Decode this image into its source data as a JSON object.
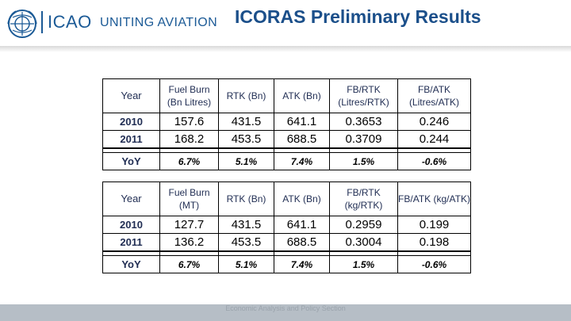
{
  "header": {
    "logo_text": "ICAO",
    "tagline": "UNITING AVIATION",
    "title": "ICORAS Preliminary Results"
  },
  "footer": {
    "text": "Economic Analysis and Policy Section"
  },
  "tables": [
    {
      "headers": [
        "Year",
        "Fuel Burn (Bn Litres)",
        "RTK (Bn)",
        "ATK (Bn)",
        "FB/RTK (Litres/RTK)",
        "FB/ATK (Litres/ATK)"
      ],
      "rows": [
        [
          "2010",
          "157.6",
          "431.5",
          "641.1",
          "0.3653",
          "0.246"
        ],
        [
          "2011",
          "168.2",
          "453.5",
          "688.5",
          "0.3709",
          "0.244"
        ]
      ],
      "yoy": [
        "YoY",
        "6.7%",
        "5.1%",
        "7.4%",
        "1.5%",
        "-0.6%"
      ]
    },
    {
      "headers": [
        "Year",
        "Fuel Burn (MT)",
        "RTK (Bn)",
        "ATK (Bn)",
        "FB/RTK (kg/RTK)",
        "FB/ATK (kg/ATK)"
      ],
      "rows": [
        [
          "2010",
          "127.7",
          "431.5",
          "641.1",
          "0.2959",
          "0.199"
        ],
        [
          "2011",
          "136.2",
          "453.5",
          "688.5",
          "0.3004",
          "0.198"
        ]
      ],
      "yoy": [
        "YoY",
        "6.7%",
        "5.1%",
        "7.4%",
        "1.5%",
        "-0.6%"
      ]
    }
  ],
  "colors": {
    "brand_blue": "#1b5a96",
    "title_blue": "#1b4f8a",
    "footer_gray": "#b6bec6"
  }
}
